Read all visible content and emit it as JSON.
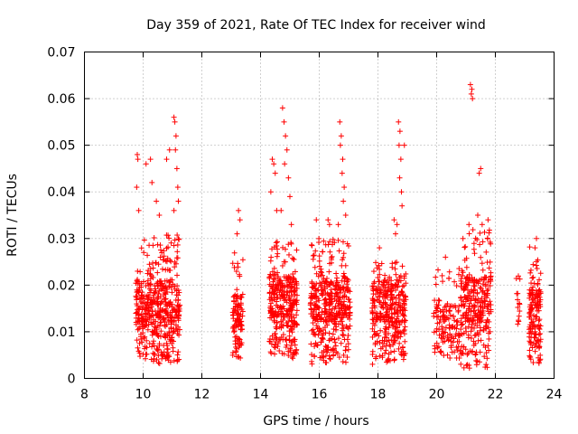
{
  "chart_data": {
    "type": "scatter",
    "title": "Day 359 of 2021, Rate Of TEC Index for receiver wind",
    "xlabel": "GPS time / hours",
    "ylabel": "ROTI / TECUs",
    "xlim": [
      8,
      24
    ],
    "ylim": [
      0,
      0.07
    ],
    "xticks": [
      8,
      10,
      12,
      14,
      16,
      18,
      20,
      22,
      24
    ],
    "yticks": [
      0,
      0.01,
      0.02,
      0.03,
      0.04,
      0.05,
      0.06,
      0.07
    ],
    "xtick_labels": [
      "8",
      "10",
      "12",
      "14",
      "16",
      "18",
      "20",
      "22",
      "24"
    ],
    "ytick_labels": [
      "0",
      "0.01",
      "0.02",
      "0.03",
      "0.04",
      "0.05",
      "0.06",
      "0.07"
    ],
    "grid": true,
    "marker": "+",
    "color": "#ff0000",
    "series": [
      {
        "name": "ROTI",
        "clusters": [
          {
            "x": [
              9.75,
              11.25
            ],
            "y_median": 0.012,
            "y_min": 0.003,
            "y_max": 0.031,
            "count": 480
          },
          {
            "x": [
              13.05,
              13.4
            ],
            "y_median": 0.011,
            "y_min": 0.004,
            "y_max": 0.027,
            "count": 110
          },
          {
            "x": [
              14.3,
              15.25
            ],
            "y_median": 0.013,
            "y_min": 0.004,
            "y_max": 0.03,
            "count": 320
          },
          {
            "x": [
              15.7,
              17.05
            ],
            "y_median": 0.012,
            "y_min": 0.003,
            "y_max": 0.03,
            "count": 420
          },
          {
            "x": [
              17.8,
              18.95
            ],
            "y_median": 0.012,
            "y_min": 0.003,
            "y_max": 0.025,
            "count": 350
          },
          {
            "x": [
              19.9,
              20.8
            ],
            "y_median": 0.01,
            "y_min": 0.004,
            "y_max": 0.024,
            "count": 130
          },
          {
            "x": [
              20.8,
              21.85
            ],
            "y_median": 0.012,
            "y_min": 0.002,
            "y_max": 0.032,
            "count": 300
          },
          {
            "x": [
              22.7,
              22.85
            ],
            "y_median": 0.012,
            "y_min": 0.005,
            "y_max": 0.023,
            "count": 14
          },
          {
            "x": [
              23.15,
              23.55
            ],
            "y_median": 0.011,
            "y_min": 0.003,
            "y_max": 0.029,
            "count": 150
          }
        ],
        "outliers": [
          {
            "x": 9.8,
            "y": 0.048
          },
          {
            "x": 9.82,
            "y": 0.047
          },
          {
            "x": 9.78,
            "y": 0.041
          },
          {
            "x": 9.85,
            "y": 0.036
          },
          {
            "x": 10.1,
            "y": 0.046
          },
          {
            "x": 10.25,
            "y": 0.047
          },
          {
            "x": 10.3,
            "y": 0.042
          },
          {
            "x": 10.45,
            "y": 0.038
          },
          {
            "x": 10.55,
            "y": 0.035
          },
          {
            "x": 10.8,
            "y": 0.047
          },
          {
            "x": 10.9,
            "y": 0.049
          },
          {
            "x": 11.05,
            "y": 0.056
          },
          {
            "x": 11.08,
            "y": 0.055
          },
          {
            "x": 11.12,
            "y": 0.052
          },
          {
            "x": 11.1,
            "y": 0.049
          },
          {
            "x": 11.15,
            "y": 0.045
          },
          {
            "x": 11.18,
            "y": 0.041
          },
          {
            "x": 11.2,
            "y": 0.038
          },
          {
            "x": 11.05,
            "y": 0.036
          },
          {
            "x": 13.25,
            "y": 0.036
          },
          {
            "x": 13.3,
            "y": 0.034
          },
          {
            "x": 13.2,
            "y": 0.031
          },
          {
            "x": 14.4,
            "y": 0.047
          },
          {
            "x": 14.45,
            "y": 0.046
          },
          {
            "x": 14.5,
            "y": 0.044
          },
          {
            "x": 14.35,
            "y": 0.04
          },
          {
            "x": 14.55,
            "y": 0.036
          },
          {
            "x": 14.75,
            "y": 0.058
          },
          {
            "x": 14.8,
            "y": 0.055
          },
          {
            "x": 14.85,
            "y": 0.052
          },
          {
            "x": 14.9,
            "y": 0.049
          },
          {
            "x": 14.82,
            "y": 0.046
          },
          {
            "x": 14.95,
            "y": 0.043
          },
          {
            "x": 15.0,
            "y": 0.039
          },
          {
            "x": 14.7,
            "y": 0.036
          },
          {
            "x": 15.05,
            "y": 0.033
          },
          {
            "x": 15.9,
            "y": 0.034
          },
          {
            "x": 16.3,
            "y": 0.034
          },
          {
            "x": 16.35,
            "y": 0.033
          },
          {
            "x": 16.7,
            "y": 0.055
          },
          {
            "x": 16.75,
            "y": 0.052
          },
          {
            "x": 16.72,
            "y": 0.05
          },
          {
            "x": 16.8,
            "y": 0.047
          },
          {
            "x": 16.78,
            "y": 0.044
          },
          {
            "x": 16.85,
            "y": 0.041
          },
          {
            "x": 16.82,
            "y": 0.038
          },
          {
            "x": 16.9,
            "y": 0.035
          },
          {
            "x": 16.65,
            "y": 0.033
          },
          {
            "x": 18.05,
            "y": 0.028
          },
          {
            "x": 18.55,
            "y": 0.034
          },
          {
            "x": 18.6,
            "y": 0.031
          },
          {
            "x": 18.7,
            "y": 0.055
          },
          {
            "x": 18.75,
            "y": 0.053
          },
          {
            "x": 18.72,
            "y": 0.05
          },
          {
            "x": 18.78,
            "y": 0.047
          },
          {
            "x": 18.74,
            "y": 0.043
          },
          {
            "x": 18.8,
            "y": 0.04
          },
          {
            "x": 18.82,
            "y": 0.037
          },
          {
            "x": 18.65,
            "y": 0.033
          },
          {
            "x": 18.9,
            "y": 0.05
          },
          {
            "x": 21.15,
            "y": 0.063
          },
          {
            "x": 21.2,
            "y": 0.062
          },
          {
            "x": 21.22,
            "y": 0.06
          },
          {
            "x": 21.18,
            "y": 0.061
          },
          {
            "x": 21.5,
            "y": 0.045
          },
          {
            "x": 21.45,
            "y": 0.044
          },
          {
            "x": 21.4,
            "y": 0.035
          },
          {
            "x": 21.1,
            "y": 0.033
          },
          {
            "x": 21.75,
            "y": 0.034
          },
          {
            "x": 20.3,
            "y": 0.026
          },
          {
            "x": 21.55,
            "y": 0.033
          },
          {
            "x": 23.4,
            "y": 0.03
          },
          {
            "x": 23.35,
            "y": 0.028
          }
        ]
      }
    ]
  }
}
